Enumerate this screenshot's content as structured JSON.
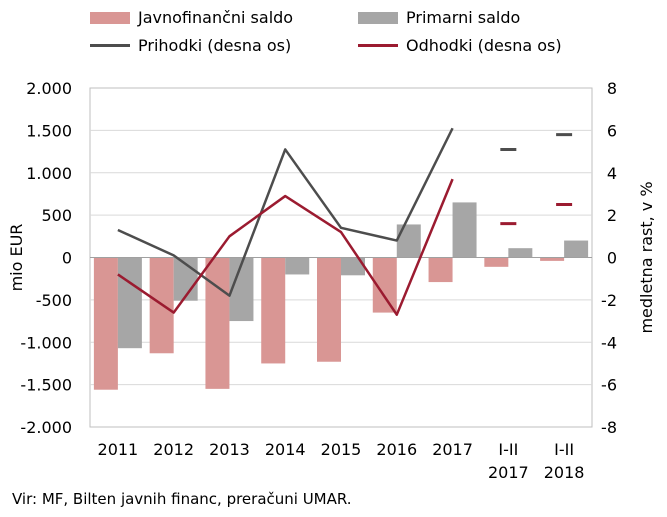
{
  "chart_data": {
    "type": "bar",
    "categories": [
      [
        "2011"
      ],
      [
        "2012"
      ],
      [
        "2013"
      ],
      [
        "2014"
      ],
      [
        "2015"
      ],
      [
        "2016"
      ],
      [
        "2017"
      ],
      [
        "I-II",
        "2017"
      ],
      [
        "I-II",
        "2018"
      ]
    ],
    "bar_series": [
      {
        "name": "Javnofinančni saldo",
        "color": "#d99694",
        "values": [
          -1560,
          -1130,
          -1550,
          -1250,
          -1230,
          -650,
          -290,
          -110,
          -40
        ]
      },
      {
        "name": "Primarni saldo",
        "color": "#a6a6a6",
        "values": [
          -1070,
          -510,
          -750,
          -200,
          -210,
          390,
          650,
          110,
          200
        ]
      }
    ],
    "line_series": [
      {
        "name": "Prihodki (desna os)",
        "color": "#4d4d4d",
        "axis": "right",
        "values": [
          1.3,
          0.1,
          -1.8,
          5.1,
          1.4,
          0.8,
          6.1,
          5.1,
          5.8
        ],
        "connected_points": 7
      },
      {
        "name": "Odhodki (desna os)",
        "color": "#9b1b30",
        "axis": "right",
        "values": [
          -0.8,
          -2.6,
          1.0,
          2.9,
          1.2,
          -2.7,
          3.7,
          1.6,
          2.5
        ],
        "connected_points": 7
      }
    ],
    "y_left": {
      "label": "mio EUR",
      "range": [
        -2000,
        2000
      ],
      "ticks": [
        -2000,
        -1500,
        -1000,
        -500,
        0,
        500,
        1000,
        1500,
        2000
      ],
      "tick_labels": [
        "-2.000",
        "-1.500",
        "-1.000",
        "-500",
        "0",
        "500",
        "1.000",
        "1.500",
        "2.000"
      ]
    },
    "y_right": {
      "label": "medletna rast, v %",
      "range": [
        -8,
        8
      ],
      "ticks": [
        -8,
        -6,
        -4,
        -2,
        0,
        2,
        4,
        6,
        8
      ],
      "tick_labels": [
        "-8",
        "-6",
        "-4",
        "-2",
        "0",
        "2",
        "4",
        "6",
        "8"
      ]
    },
    "grid": "horizontal",
    "legend": "top"
  },
  "legend": {
    "javno": "Javnofinančni saldo",
    "primarni": "Primarni saldo",
    "prihodki": "Prihodki (desna os)",
    "odhodki": "Odhodki (desna os)"
  },
  "source": "Vir: MF, Bilten javnih financ, preračuni UMAR."
}
